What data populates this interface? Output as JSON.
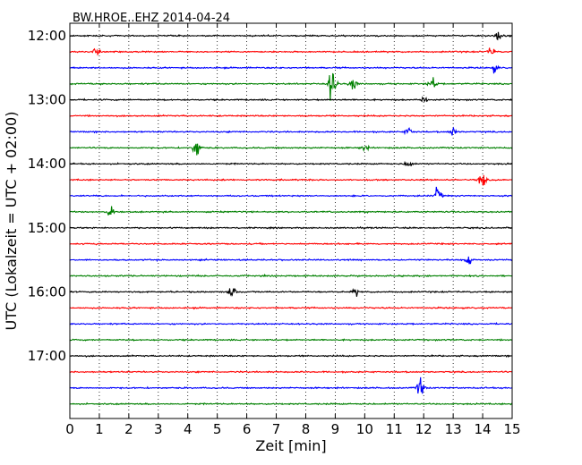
{
  "chart_data": {
    "type": "line",
    "title": "BW.HROE..EHZ 2014-04-24",
    "xlabel": "Zeit  [min]",
    "ylabel": "UTC (Lokalzeit = UTC + 02:00)",
    "xlim": [
      0,
      15
    ],
    "x_ticks": [
      0,
      1,
      2,
      3,
      4,
      5,
      6,
      7,
      8,
      9,
      10,
      11,
      12,
      13,
      14,
      15
    ],
    "x_tick_labels": [
      "0",
      "1",
      "2",
      "3",
      "4",
      "5",
      "6",
      "7",
      "8",
      "9",
      "10",
      "11",
      "12",
      "13",
      "14",
      "15"
    ],
    "y_tick_labels": [
      "12:00",
      "13:00",
      "14:00",
      "15:00",
      "16:00",
      "17:00"
    ],
    "grid": "vertical dotted lines at each minute",
    "trace_interval_min": 15,
    "color_cycle": [
      "#000000",
      "#ff0000",
      "#0000ff",
      "#008000"
    ],
    "series": [
      {
        "start": "12:00",
        "events": [
          {
            "t": 14.5,
            "amp": 0.25
          }
        ]
      },
      {
        "start": "12:15",
        "events": [
          {
            "t": 0.9,
            "amp": 0.2
          },
          {
            "t": 14.3,
            "amp": 0.2
          }
        ]
      },
      {
        "start": "12:30",
        "events": [
          {
            "t": 14.4,
            "amp": 0.18
          }
        ]
      },
      {
        "start": "12:45",
        "events": [
          {
            "t": 8.9,
            "amp": 1.0
          },
          {
            "t": 9.6,
            "amp": 0.35
          },
          {
            "t": 12.3,
            "amp": 0.35
          }
        ]
      },
      {
        "start": "13:00",
        "events": [
          {
            "t": 12.0,
            "amp": 0.15
          }
        ]
      },
      {
        "start": "13:15",
        "events": []
      },
      {
        "start": "13:30",
        "events": [
          {
            "t": 11.5,
            "amp": 0.2
          },
          {
            "t": 13.0,
            "amp": 0.2
          }
        ]
      },
      {
        "start": "13:45",
        "events": [
          {
            "t": 4.3,
            "amp": 0.5
          },
          {
            "t": 10.0,
            "amp": 0.15
          }
        ]
      },
      {
        "start": "14:00",
        "events": [
          {
            "t": 11.5,
            "amp": 0.2
          }
        ]
      },
      {
        "start": "14:15",
        "events": [
          {
            "t": 14.0,
            "amp": 0.35
          }
        ]
      },
      {
        "start": "14:30",
        "events": [
          {
            "t": 12.5,
            "amp": 0.4
          }
        ]
      },
      {
        "start": "14:45",
        "events": [
          {
            "t": 1.4,
            "amp": 0.35
          }
        ]
      },
      {
        "start": "15:00",
        "events": []
      },
      {
        "start": "15:15",
        "events": []
      },
      {
        "start": "15:30",
        "events": [
          {
            "t": 13.5,
            "amp": 0.25
          }
        ]
      },
      {
        "start": "15:45",
        "events": []
      },
      {
        "start": "16:00",
        "events": [
          {
            "t": 5.5,
            "amp": 0.35
          },
          {
            "t": 9.7,
            "amp": 0.15
          }
        ]
      },
      {
        "start": "16:15",
        "events": []
      },
      {
        "start": "16:30",
        "events": []
      },
      {
        "start": "16:45",
        "events": []
      },
      {
        "start": "17:00",
        "events": []
      },
      {
        "start": "17:15",
        "events": []
      },
      {
        "start": "17:30",
        "events": [
          {
            "t": 11.9,
            "amp": 0.5
          }
        ]
      },
      {
        "start": "17:45",
        "events": []
      }
    ]
  }
}
